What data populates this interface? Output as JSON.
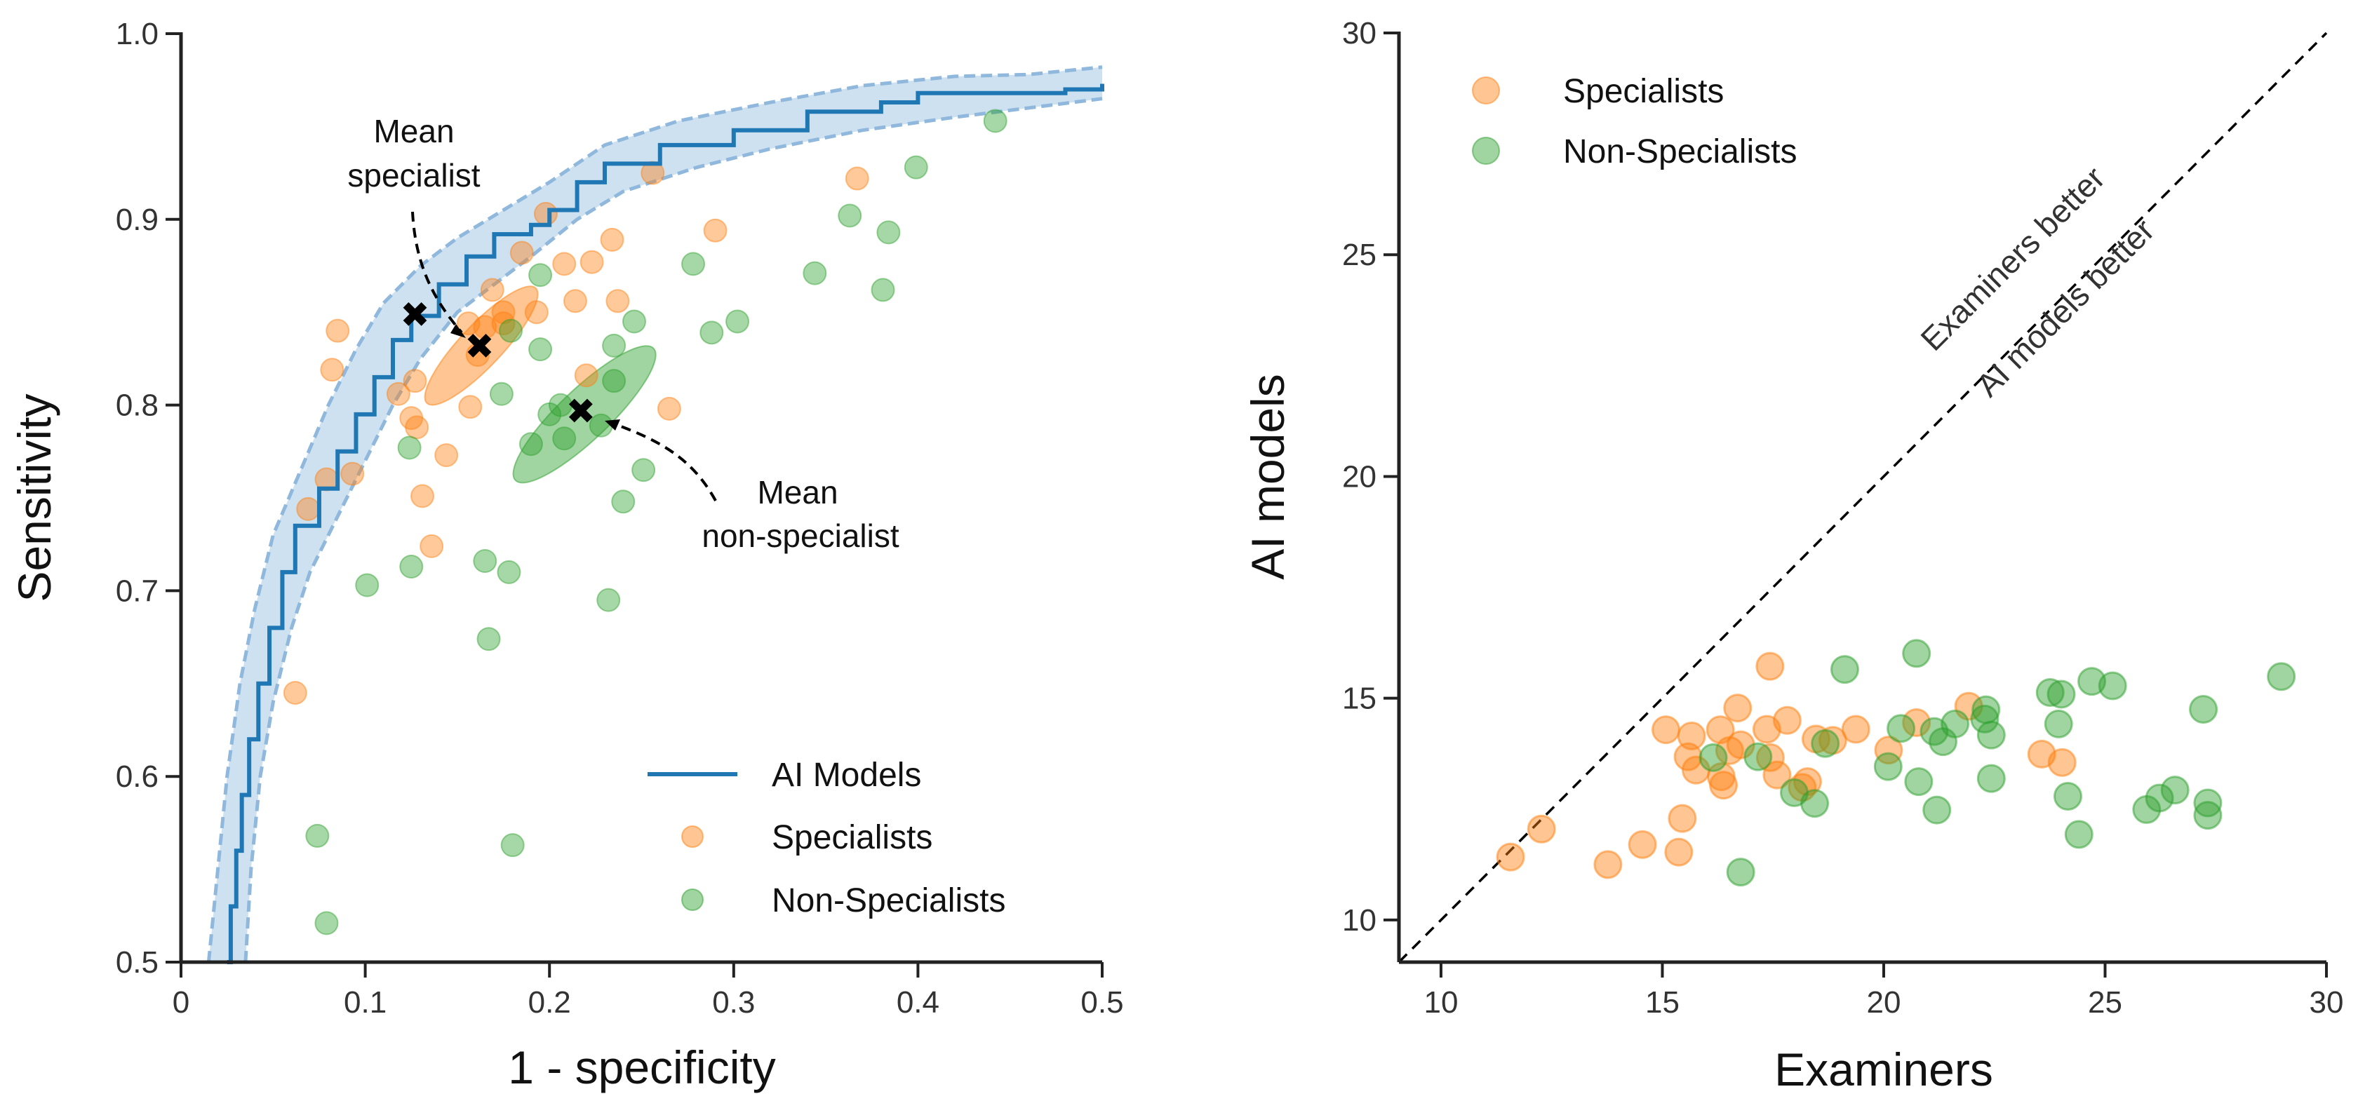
{
  "chart_data": [
    {
      "type": "line+scatter",
      "xlabel": "1 - specificity",
      "ylabel": "Sensitivity",
      "xlim": [
        0,
        0.5
      ],
      "ylim": [
        0.5,
        1.0
      ],
      "xticks": [
        "0",
        "0.1",
        "0.2",
        "0.3",
        "0.4",
        "0.5"
      ],
      "yticks": [
        "0.5",
        "0.6",
        "0.7",
        "0.8",
        "0.9",
        "1.0"
      ],
      "grid": false,
      "legend_position": "bottom-right",
      "colors": {
        "ai": "#1f77b4",
        "band": "#b9d4ea",
        "specialists": "#ff7f0e",
        "non_specialists": "#2ca02c"
      },
      "series": [
        {
          "name": "AI Models",
          "kind": "line",
          "points": [
            [
              0.025,
              0.5
            ],
            [
              0.027,
              0.53
            ],
            [
              0.03,
              0.56
            ],
            [
              0.033,
              0.59
            ],
            [
              0.037,
              0.62
            ],
            [
              0.042,
              0.65
            ],
            [
              0.048,
              0.68
            ],
            [
              0.055,
              0.71
            ],
            [
              0.062,
              0.735
            ],
            [
              0.075,
              0.755
            ],
            [
              0.085,
              0.775
            ],
            [
              0.095,
              0.795
            ],
            [
              0.105,
              0.815
            ],
            [
              0.115,
              0.835
            ],
            [
              0.125,
              0.848
            ],
            [
              0.14,
              0.865
            ],
            [
              0.155,
              0.88
            ],
            [
              0.17,
              0.892
            ],
            [
              0.19,
              0.897
            ],
            [
              0.2,
              0.905
            ],
            [
              0.215,
              0.92
            ],
            [
              0.23,
              0.93
            ],
            [
              0.26,
              0.94
            ],
            [
              0.3,
              0.948
            ],
            [
              0.34,
              0.958
            ],
            [
              0.38,
              0.963
            ],
            [
              0.4,
              0.968
            ],
            [
              0.45,
              0.968
            ],
            [
              0.48,
              0.97
            ],
            [
              0.5,
              0.973
            ]
          ],
          "band_upper": [
            [
              0.015,
              0.5
            ],
            [
              0.02,
              0.55
            ],
            [
              0.025,
              0.6
            ],
            [
              0.032,
              0.65
            ],
            [
              0.04,
              0.69
            ],
            [
              0.05,
              0.73
            ],
            [
              0.065,
              0.765
            ],
            [
              0.08,
              0.8
            ],
            [
              0.095,
              0.83
            ],
            [
              0.11,
              0.855
            ],
            [
              0.13,
              0.875
            ],
            [
              0.15,
              0.89
            ],
            [
              0.175,
              0.905
            ],
            [
              0.2,
              0.92
            ],
            [
              0.23,
              0.94
            ],
            [
              0.27,
              0.953
            ],
            [
              0.32,
              0.963
            ],
            [
              0.37,
              0.972
            ],
            [
              0.42,
              0.977
            ],
            [
              0.46,
              0.978
            ],
            [
              0.5,
              0.982
            ]
          ],
          "band_lower": [
            [
              0.035,
              0.5
            ],
            [
              0.038,
              0.55
            ],
            [
              0.043,
              0.6
            ],
            [
              0.05,
              0.64
            ],
            [
              0.06,
              0.68
            ],
            [
              0.07,
              0.71
            ],
            [
              0.085,
              0.74
            ],
            [
              0.1,
              0.77
            ],
            [
              0.115,
              0.8
            ],
            [
              0.13,
              0.825
            ],
            [
              0.15,
              0.85
            ],
            [
              0.17,
              0.865
            ],
            [
              0.19,
              0.88
            ],
            [
              0.215,
              0.9
            ],
            [
              0.24,
              0.915
            ],
            [
              0.28,
              0.928
            ],
            [
              0.32,
              0.938
            ],
            [
              0.37,
              0.948
            ],
            [
              0.42,
              0.955
            ],
            [
              0.46,
              0.96
            ],
            [
              0.5,
              0.965
            ]
          ]
        },
        {
          "name": "Specialists",
          "kind": "scatter",
          "points": [
            [
              0.256,
              0.925
            ],
            [
              0.367,
              0.922
            ],
            [
              0.198,
              0.903
            ],
            [
              0.29,
              0.894
            ],
            [
              0.234,
              0.889
            ],
            [
              0.185,
              0.882
            ],
            [
              0.208,
              0.876
            ],
            [
              0.223,
              0.877
            ],
            [
              0.169,
              0.862
            ],
            [
              0.214,
              0.856
            ],
            [
              0.237,
              0.856
            ],
            [
              0.193,
              0.85
            ],
            [
              0.175,
              0.85
            ],
            [
              0.156,
              0.844
            ],
            [
              0.165,
              0.842
            ],
            [
              0.085,
              0.84
            ],
            [
              0.175,
              0.844
            ],
            [
              0.161,
              0.827
            ],
            [
              0.082,
              0.819
            ],
            [
              0.127,
              0.813
            ],
            [
              0.22,
              0.816
            ],
            [
              0.118,
              0.806
            ],
            [
              0.157,
              0.799
            ],
            [
              0.265,
              0.798
            ],
            [
              0.125,
              0.793
            ],
            [
              0.128,
              0.788
            ],
            [
              0.144,
              0.773
            ],
            [
              0.079,
              0.76
            ],
            [
              0.093,
              0.763
            ],
            [
              0.069,
              0.744
            ],
            [
              0.131,
              0.751
            ],
            [
              0.136,
              0.724
            ],
            [
              0.062,
              0.645
            ]
          ]
        },
        {
          "name": "Non-Specialists",
          "kind": "scatter",
          "points": [
            [
              0.442,
              0.953
            ],
            [
              0.399,
              0.928
            ],
            [
              0.363,
              0.902
            ],
            [
              0.384,
              0.893
            ],
            [
              0.278,
              0.876
            ],
            [
              0.344,
              0.871
            ],
            [
              0.195,
              0.87
            ],
            [
              0.381,
              0.862
            ],
            [
              0.246,
              0.845
            ],
            [
              0.302,
              0.845
            ],
            [
              0.288,
              0.839
            ],
            [
              0.179,
              0.84
            ],
            [
              0.195,
              0.83
            ],
            [
              0.235,
              0.832
            ],
            [
              0.235,
              0.813
            ],
            [
              0.174,
              0.806
            ],
            [
              0.206,
              0.8
            ],
            [
              0.2,
              0.795
            ],
            [
              0.228,
              0.789
            ],
            [
              0.19,
              0.779
            ],
            [
              0.208,
              0.782
            ],
            [
              0.124,
              0.777
            ],
            [
              0.251,
              0.765
            ],
            [
              0.24,
              0.748
            ],
            [
              0.125,
              0.713
            ],
            [
              0.101,
              0.703
            ],
            [
              0.165,
              0.716
            ],
            [
              0.178,
              0.71
            ],
            [
              0.232,
              0.695
            ],
            [
              0.167,
              0.674
            ],
            [
              0.074,
              0.568
            ],
            [
              0.18,
              0.563
            ],
            [
              0.079,
              0.521
            ]
          ]
        }
      ],
      "markers": {
        "ai_operating_point": [
          0.127,
          0.849
        ],
        "mean_specialist": [
          0.162,
          0.832
        ],
        "mean_non_specialist": [
          0.217,
          0.797
        ]
      },
      "ellipses": {
        "specialist": {
          "center": [
            0.163,
            0.832
          ],
          "major_axis": [
            [
              0.134,
              0.798
            ],
            [
              0.193,
              0.86
            ]
          ]
        },
        "non_specialist": {
          "center": [
            0.219,
            0.795
          ],
          "major_axis": [
            [
              0.182,
              0.759
            ],
            [
              0.257,
              0.83
            ]
          ]
        }
      },
      "annotations": {
        "mean_specialist": [
          "Mean",
          "specialist"
        ],
        "mean_non_specialist": [
          "Mean",
          "non-specialist"
        ]
      }
    },
    {
      "type": "scatter",
      "xlabel": "Examiners",
      "ylabel": "AI models",
      "xlim": [
        9.05,
        30
      ],
      "ylim": [
        9.05,
        30
      ],
      "xticks": [
        "10",
        "15",
        "20",
        "25",
        "30"
      ],
      "yticks": [
        "10",
        "15",
        "20",
        "25",
        "30"
      ],
      "grid": false,
      "legend_position": "top-left",
      "reference_line": "y = x",
      "annotations": {
        "above": "Examiners better",
        "below": "AI models better"
      },
      "series": [
        {
          "name": "Specialists",
          "points": [
            [
              17.43,
              15.72
            ],
            [
              16.7,
              14.78
            ],
            [
              21.92,
              14.82
            ],
            [
              17.82,
              14.5
            ],
            [
              15.08,
              14.29
            ],
            [
              16.31,
              14.29
            ],
            [
              17.36,
              14.3
            ],
            [
              19.37,
              14.3
            ],
            [
              20.74,
              14.45
            ],
            [
              15.66,
              14.15
            ],
            [
              16.77,
              13.95
            ],
            [
              18.47,
              14.08
            ],
            [
              18.85,
              14.05
            ],
            [
              20.11,
              13.83
            ],
            [
              15.58,
              13.68
            ],
            [
              16.52,
              13.82
            ],
            [
              17.44,
              13.66
            ],
            [
              23.57,
              13.74
            ],
            [
              24.03,
              13.55
            ],
            [
              15.76,
              13.38
            ],
            [
              16.33,
              13.23
            ],
            [
              17.59,
              13.27
            ],
            [
              16.38,
              13.04
            ],
            [
              18.28,
              13.12
            ],
            [
              18.16,
              12.99
            ],
            [
              15.45,
              12.29
            ],
            [
              12.27,
              12.05
            ],
            [
              14.55,
              11.7
            ],
            [
              15.37,
              11.53
            ],
            [
              11.57,
              11.42
            ],
            [
              13.77,
              11.25
            ]
          ]
        },
        {
          "name": "Non-Specialists",
          "points": [
            [
              20.74,
              16.01
            ],
            [
              19.12,
              15.65
            ],
            [
              28.98,
              15.49
            ],
            [
              24.7,
              15.38
            ],
            [
              25.17,
              15.28
            ],
            [
              23.76,
              15.13
            ],
            [
              24.01,
              15.09
            ],
            [
              27.22,
              14.75
            ],
            [
              22.31,
              14.74
            ],
            [
              22.28,
              14.53
            ],
            [
              21.61,
              14.42
            ],
            [
              20.39,
              14.32
            ],
            [
              23.95,
              14.42
            ],
            [
              21.14,
              14.25
            ],
            [
              21.34,
              14.02
            ],
            [
              22.43,
              14.17
            ],
            [
              18.68,
              13.98
            ],
            [
              17.16,
              13.68
            ],
            [
              16.15,
              13.66
            ],
            [
              20.1,
              13.46
            ],
            [
              22.43,
              13.19
            ],
            [
              20.79,
              13.12
            ],
            [
              17.98,
              12.87
            ],
            [
              18.44,
              12.63
            ],
            [
              24.16,
              12.79
            ],
            [
              26.58,
              12.93
            ],
            [
              26.23,
              12.75
            ],
            [
              27.32,
              12.64
            ],
            [
              25.94,
              12.49
            ],
            [
              27.32,
              12.36
            ],
            [
              21.2,
              12.48
            ],
            [
              24.41,
              11.93
            ],
            [
              16.77,
              11.08
            ]
          ]
        }
      ]
    }
  ]
}
